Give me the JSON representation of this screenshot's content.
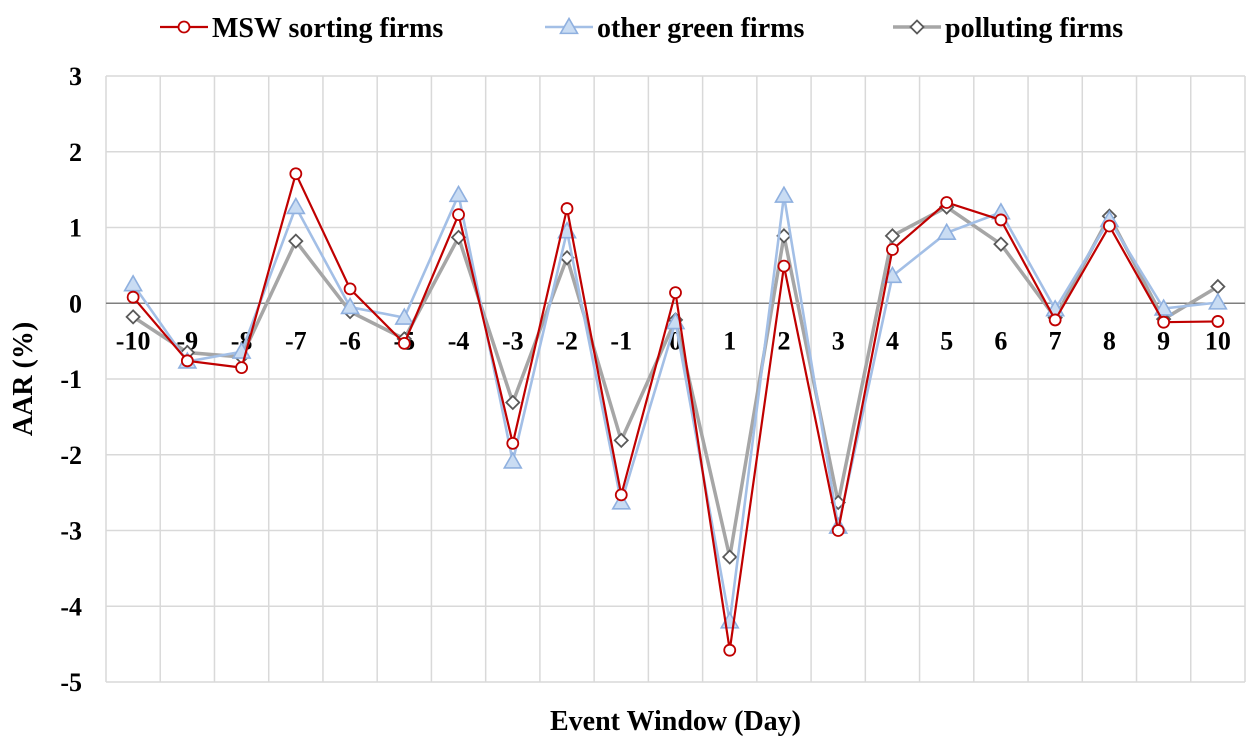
{
  "chart_data": {
    "type": "line",
    "title": "",
    "xlabel": "Event Window (Day)",
    "ylabel": "AAR (%)",
    "ylim": [
      -5,
      3
    ],
    "yticks": [
      -5,
      -4,
      -3,
      -2,
      -1,
      0,
      1,
      2,
      3
    ],
    "x": [
      -10,
      -9,
      -8,
      -7,
      -6,
      -5,
      -4,
      -3,
      -2,
      -1,
      0,
      1,
      2,
      3,
      4,
      5,
      6,
      7,
      8,
      9,
      10
    ],
    "grid": true,
    "legend_position": "top",
    "series": [
      {
        "name": "MSW sorting firms",
        "color": "#c00000",
        "marker": "circle",
        "values": [
          0.08,
          -0.76,
          -0.85,
          1.71,
          0.19,
          -0.53,
          1.17,
          -1.85,
          1.25,
          -2.53,
          0.14,
          -4.58,
          0.49,
          -3.0,
          0.71,
          1.33,
          1.1,
          -0.22,
          1.02,
          -0.25,
          -0.24
        ]
      },
      {
        "name": "other green firms",
        "color": "#a3bfe6",
        "marker": "triangle",
        "values": [
          0.25,
          -0.77,
          -0.64,
          1.27,
          -0.05,
          -0.19,
          1.43,
          -2.09,
          0.95,
          -2.63,
          -0.25,
          -4.2,
          1.42,
          -2.95,
          0.36,
          0.93,
          1.2,
          -0.08,
          1.1,
          -0.07,
          0.01
        ]
      },
      {
        "name": "polluting firms",
        "color": "#a6a6a6",
        "marker": "diamond",
        "values": [
          -0.18,
          -0.65,
          -0.71,
          0.82,
          -0.11,
          -0.47,
          0.87,
          -1.31,
          0.6,
          -1.81,
          -0.22,
          -3.35,
          0.89,
          -2.63,
          0.89,
          1.27,
          0.78,
          -0.19,
          1.15,
          -0.21,
          0.22
        ]
      }
    ]
  }
}
